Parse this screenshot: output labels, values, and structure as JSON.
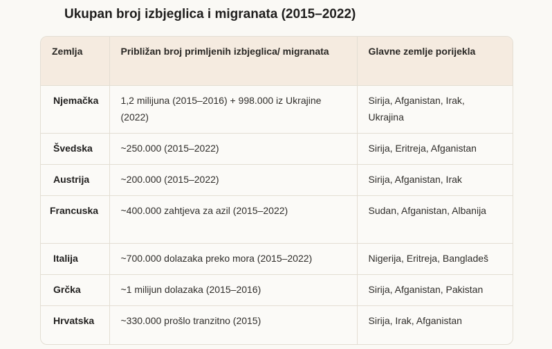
{
  "title": "Ukupan broj izbjeglica i migranata (2015–2022)",
  "table": {
    "headers": [
      "Zemlja",
      "Približan broj primljenih izbjeglica/ migranata",
      "Glavne zemlje porijekla"
    ],
    "rows": [
      {
        "country": "Njemačka",
        "count": "1,2 milijuna (2015–2016) + 998.000 iz Ukrajine (2022)",
        "origin": "Sirija, Afganistan, Irak, Ukrajina"
      },
      {
        "country": "Švedska",
        "count": "~250.000 (2015–2022)",
        "origin": "Sirija, Eritreja, Afganistan"
      },
      {
        "country": "Austrija",
        "count": "~200.000 (2015–2022)",
        "origin": "Sirija, Afganistan, Irak"
      },
      {
        "country": "Francuska",
        "count": "~400.000 zahtjeva za azil (2015–2022)",
        "origin": "Sudan, Afganistan, Albanija"
      },
      {
        "country": "Italija",
        "count": "~700.000 dolazaka preko mora (2015–2022)",
        "origin": "Nigerija, Eritreja, Bangladeš"
      },
      {
        "country": "Grčka",
        "count": "~1 milijun dolazaka (2015–2016)",
        "origin": "Sirija, Afganistan, Pakistan"
      },
      {
        "country": "Hrvatska",
        "count": "~330.000 prošlo tranzitno (2015)",
        "origin": "Sirija, Irak, Afganistan"
      }
    ]
  }
}
